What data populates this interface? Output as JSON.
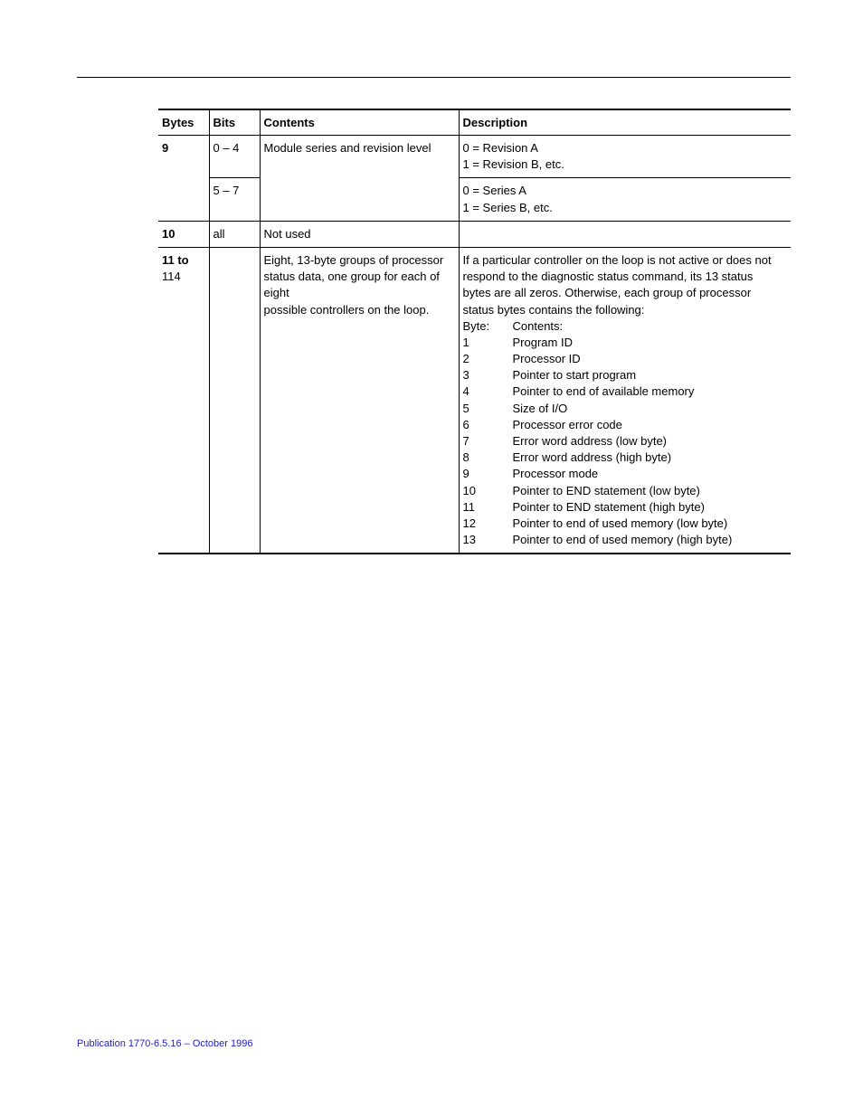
{
  "header": {
    "bytes": "Bytes",
    "bits": "Bits",
    "contents": "Contents",
    "description": "Description"
  },
  "rows": {
    "r9a": {
      "bytes": "9",
      "bits": "0 – 4",
      "contents": "Module series and revision level",
      "desc1": "0 = Revision A",
      "desc2": "1 = Revision B, etc."
    },
    "r9b": {
      "bits": "5 – 7",
      "desc1": "0 = Series A",
      "desc2": "1 = Series B, etc."
    },
    "r10": {
      "bytes": "10",
      "bits": "all",
      "contents": "Not used"
    },
    "r11": {
      "bytes1": "11 to",
      "bytes2": "114",
      "contents1": "Eight, 13-byte groups of processor",
      "contents2": "status data, one group for each of eight",
      "contents3": "possible controllers on the loop.",
      "intro1": "If a particular controller on the loop is not active or does not",
      "intro2": "respond to the diagnostic status command, its 13 status",
      "intro3": "bytes are all zeros.  Otherwise, each group of processor",
      "intro4": "status bytes contains the following:",
      "bh1": "Byte:",
      "bh2": "Contents:",
      "b1n": "1",
      "b1c": "Program ID",
      "b2n": "2",
      "b2c": "Processor ID",
      "b3n": "3",
      "b3c": "Pointer to start program",
      "b4n": "4",
      "b4c": "Pointer to end of available memory",
      "b5n": "5",
      "b5c": "Size of I/O",
      "b6n": "6",
      "b6c": "Processor error code",
      "b7n": "7",
      "b7c": "Error word address (low byte)",
      "b8n": "8",
      "b8c": "Error word address (high byte)",
      "b9n": "9",
      "b9c": "Processor mode",
      "b10n": "10",
      "b10c": "Pointer to END statement (low byte)",
      "b11n": "11",
      "b11c": "Pointer to END statement (high byte)",
      "b12n": "12",
      "b12c": "Pointer to end of used memory (low byte)",
      "b13n": "13",
      "b13c": "Pointer to end of used memory (high byte)"
    }
  },
  "footer": "Publication 1770-6.5.16 – October 1996"
}
